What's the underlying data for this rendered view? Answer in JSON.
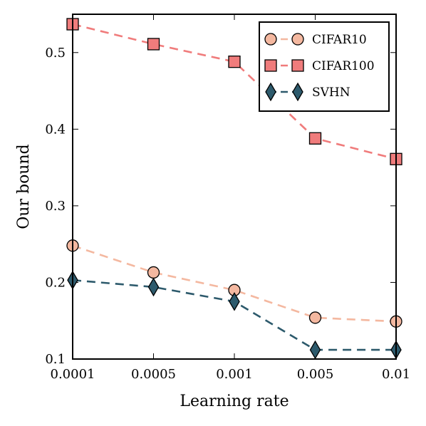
{
  "chart_data": {
    "type": "line",
    "title": "",
    "xlabel": "Learning rate",
    "ylabel": "Our bound",
    "categories": [
      "0.0001",
      "0.0005",
      "0.001",
      "0.005",
      "0.01"
    ],
    "ylim": [
      0.1,
      0.55
    ],
    "yticks": [
      "0.1",
      "0.2",
      "0.3",
      "0.4",
      "0.5"
    ],
    "grid": false,
    "legend_position": "top-right",
    "series": [
      {
        "name": "CIFAR10",
        "marker": "circle",
        "color": "#f4b8a0",
        "values": [
          0.248,
          0.213,
          0.19,
          0.154,
          0.149
        ]
      },
      {
        "name": "CIFAR100",
        "marker": "square",
        "color": "#f07c7c",
        "values": [
          0.537,
          0.511,
          0.488,
          0.388,
          0.361
        ]
      },
      {
        "name": "SVHN",
        "marker": "diamond",
        "color": "#2d5a6c",
        "values": [
          0.203,
          0.194,
          0.175,
          0.112,
          0.112
        ]
      }
    ]
  }
}
